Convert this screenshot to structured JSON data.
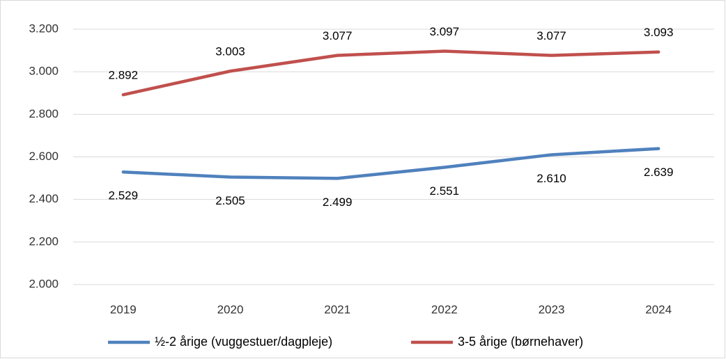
{
  "chart_data": {
    "type": "line",
    "categories": [
      "2019",
      "2020",
      "2021",
      "2022",
      "2023",
      "2024"
    ],
    "series": [
      {
        "name": "½-2 årige (vuggestuer/dagpleje)",
        "color": "#4f81bd",
        "values": [
          2529,
          2505,
          2499,
          2551,
          2610,
          2639
        ],
        "value_labels": [
          "2.529",
          "2.505",
          "2.499",
          "2.551",
          "2.610",
          "2.639"
        ]
      },
      {
        "name": "3-5 årige (børnehaver)",
        "color": "#c0504d",
        "values": [
          2892,
          3003,
          3077,
          3097,
          3077,
          3093
        ],
        "value_labels": [
          "2.892",
          "3.003",
          "3.077",
          "3.097",
          "3.077",
          "3.093"
        ]
      }
    ],
    "ylim": [
      2000,
      3200
    ],
    "yticks": [
      {
        "value": 2000,
        "label": "2.000"
      },
      {
        "value": 2200,
        "label": "2.200"
      },
      {
        "value": 2400,
        "label": "2.400"
      },
      {
        "value": 2600,
        "label": "2.600"
      },
      {
        "value": 2800,
        "label": "2.800"
      },
      {
        "value": 3000,
        "label": "3.000"
      },
      {
        "value": 3200,
        "label": "3.200"
      }
    ],
    "grid": true,
    "legend": "bottom"
  }
}
